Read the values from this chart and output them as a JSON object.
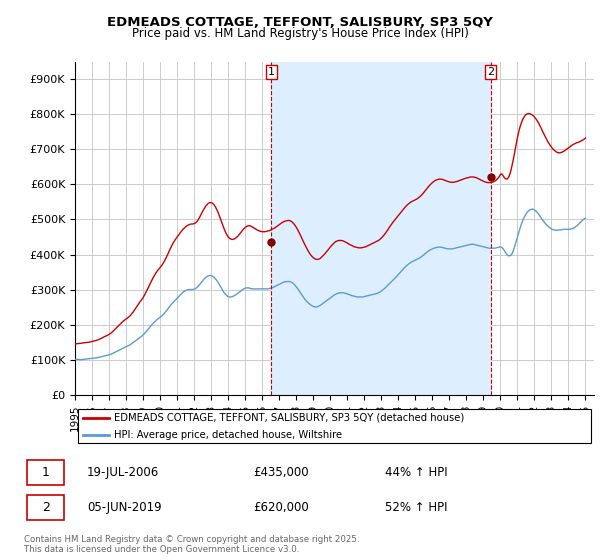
{
  "title": "EDMEADS COTTAGE, TEFFONT, SALISBURY, SP3 5QY",
  "subtitle": "Price paid vs. HM Land Registry's House Price Index (HPI)",
  "legend_property": "EDMEADS COTTAGE, TEFFONT, SALISBURY, SP3 5QY (detached house)",
  "legend_hpi": "HPI: Average price, detached house, Wiltshire",
  "sale1_date": "19-JUL-2006",
  "sale1_price": 435000,
  "sale1_label": "44% ↑ HPI",
  "sale2_date": "05-JUN-2019",
  "sale2_price": 620000,
  "sale2_label": "52% ↑ HPI",
  "footnote": "Contains HM Land Registry data © Crown copyright and database right 2025.\nThis data is licensed under the Open Government Licence v3.0.",
  "property_color": "#cc0000",
  "hpi_color": "#5b9bd5",
  "sale_vline_color": "#cc0000",
  "background_color": "#ffffff",
  "grid_color": "#cccccc",
  "shade_color": "#ddeeff",
  "ylim": [
    0,
    950000
  ],
  "yticks": [
    0,
    100000,
    200000,
    300000,
    400000,
    500000,
    600000,
    700000,
    800000,
    900000
  ],
  "xlim_start": 1995.0,
  "xlim_end": 2025.5,
  "sale1_x": 2006.54,
  "sale2_x": 2019.43,
  "sale1_dot_y": 435000,
  "sale2_dot_y": 620000,
  "hpi_years": [
    1995.0,
    1995.083,
    1995.167,
    1995.25,
    1995.333,
    1995.417,
    1995.5,
    1995.583,
    1995.667,
    1995.75,
    1995.833,
    1995.917,
    1996.0,
    1996.083,
    1996.167,
    1996.25,
    1996.333,
    1996.417,
    1996.5,
    1996.583,
    1996.667,
    1996.75,
    1996.833,
    1996.917,
    1997.0,
    1997.083,
    1997.167,
    1997.25,
    1997.333,
    1997.417,
    1997.5,
    1997.583,
    1997.667,
    1997.75,
    1997.833,
    1997.917,
    1998.0,
    1998.083,
    1998.167,
    1998.25,
    1998.333,
    1998.417,
    1998.5,
    1998.583,
    1998.667,
    1998.75,
    1998.833,
    1998.917,
    1999.0,
    1999.083,
    1999.167,
    1999.25,
    1999.333,
    1999.417,
    1999.5,
    1999.583,
    1999.667,
    1999.75,
    1999.833,
    1999.917,
    2000.0,
    2000.083,
    2000.167,
    2000.25,
    2000.333,
    2000.417,
    2000.5,
    2000.583,
    2000.667,
    2000.75,
    2000.833,
    2000.917,
    2001.0,
    2001.083,
    2001.167,
    2001.25,
    2001.333,
    2001.417,
    2001.5,
    2001.583,
    2001.667,
    2001.75,
    2001.833,
    2001.917,
    2002.0,
    2002.083,
    2002.167,
    2002.25,
    2002.333,
    2002.417,
    2002.5,
    2002.583,
    2002.667,
    2002.75,
    2002.833,
    2002.917,
    2003.0,
    2003.083,
    2003.167,
    2003.25,
    2003.333,
    2003.417,
    2003.5,
    2003.583,
    2003.667,
    2003.75,
    2003.833,
    2003.917,
    2004.0,
    2004.083,
    2004.167,
    2004.25,
    2004.333,
    2004.417,
    2004.5,
    2004.583,
    2004.667,
    2004.75,
    2004.833,
    2004.917,
    2005.0,
    2005.083,
    2005.167,
    2005.25,
    2005.333,
    2005.417,
    2005.5,
    2005.583,
    2005.667,
    2005.75,
    2005.833,
    2005.917,
    2006.0,
    2006.083,
    2006.167,
    2006.25,
    2006.333,
    2006.417,
    2006.5,
    2006.583,
    2006.667,
    2006.75,
    2006.833,
    2006.917,
    2007.0,
    2007.083,
    2007.167,
    2007.25,
    2007.333,
    2007.417,
    2007.5,
    2007.583,
    2007.667,
    2007.75,
    2007.833,
    2007.917,
    2008.0,
    2008.083,
    2008.167,
    2008.25,
    2008.333,
    2008.417,
    2008.5,
    2008.583,
    2008.667,
    2008.75,
    2008.833,
    2008.917,
    2009.0,
    2009.083,
    2009.167,
    2009.25,
    2009.333,
    2009.417,
    2009.5,
    2009.583,
    2009.667,
    2009.75,
    2009.833,
    2009.917,
    2010.0,
    2010.083,
    2010.167,
    2010.25,
    2010.333,
    2010.417,
    2010.5,
    2010.583,
    2010.667,
    2010.75,
    2010.833,
    2010.917,
    2011.0,
    2011.083,
    2011.167,
    2011.25,
    2011.333,
    2011.417,
    2011.5,
    2011.583,
    2011.667,
    2011.75,
    2011.833,
    2011.917,
    2012.0,
    2012.083,
    2012.167,
    2012.25,
    2012.333,
    2012.417,
    2012.5,
    2012.583,
    2012.667,
    2012.75,
    2012.833,
    2012.917,
    2013.0,
    2013.083,
    2013.167,
    2013.25,
    2013.333,
    2013.417,
    2013.5,
    2013.583,
    2013.667,
    2013.75,
    2013.833,
    2013.917,
    2014.0,
    2014.083,
    2014.167,
    2014.25,
    2014.333,
    2014.417,
    2014.5,
    2014.583,
    2014.667,
    2014.75,
    2014.833,
    2014.917,
    2015.0,
    2015.083,
    2015.167,
    2015.25,
    2015.333,
    2015.417,
    2015.5,
    2015.583,
    2015.667,
    2015.75,
    2015.833,
    2015.917,
    2016.0,
    2016.083,
    2016.167,
    2016.25,
    2016.333,
    2016.417,
    2016.5,
    2016.583,
    2016.667,
    2016.75,
    2016.833,
    2016.917,
    2017.0,
    2017.083,
    2017.167,
    2017.25,
    2017.333,
    2017.417,
    2017.5,
    2017.583,
    2017.667,
    2017.75,
    2017.833,
    2017.917,
    2018.0,
    2018.083,
    2018.167,
    2018.25,
    2018.333,
    2018.417,
    2018.5,
    2018.583,
    2018.667,
    2018.75,
    2018.833,
    2018.917,
    2019.0,
    2019.083,
    2019.167,
    2019.25,
    2019.333,
    2019.417,
    2019.5,
    2019.583,
    2019.667,
    2019.75,
    2019.833,
    2019.917,
    2020.0,
    2020.083,
    2020.167,
    2020.25,
    2020.333,
    2020.417,
    2020.5,
    2020.583,
    2020.667,
    2020.75,
    2020.833,
    2020.917,
    2021.0,
    2021.083,
    2021.167,
    2021.25,
    2021.333,
    2021.417,
    2021.5,
    2021.583,
    2021.667,
    2021.75,
    2021.833,
    2021.917,
    2022.0,
    2022.083,
    2022.167,
    2022.25,
    2022.333,
    2022.417,
    2022.5,
    2022.583,
    2022.667,
    2022.75,
    2022.833,
    2022.917,
    2023.0,
    2023.083,
    2023.167,
    2023.25,
    2023.333,
    2023.417,
    2023.5,
    2023.583,
    2023.667,
    2023.75,
    2023.833,
    2023.917,
    2024.0,
    2024.083,
    2024.167,
    2024.25,
    2024.333,
    2024.417,
    2024.5,
    2024.583,
    2024.667,
    2024.75,
    2024.833,
    2024.917,
    2025.0
  ],
  "hpi_values": [
    101000,
    101500,
    101000,
    100500,
    100000,
    100500,
    101000,
    101500,
    102000,
    102500,
    103000,
    103500,
    104000,
    104500,
    105000,
    105500,
    106000,
    107000,
    108000,
    109000,
    110000,
    111000,
    112000,
    113000,
    114000,
    115000,
    117000,
    119000,
    121000,
    123000,
    125000,
    127000,
    129000,
    131000,
    133000,
    135000,
    137000,
    139000,
    141000,
    143000,
    146000,
    149000,
    152000,
    155000,
    158000,
    161000,
    164000,
    167000,
    171000,
    175000,
    179000,
    184000,
    189000,
    194000,
    199000,
    203000,
    207000,
    211000,
    215000,
    218000,
    221000,
    224000,
    228000,
    232000,
    237000,
    242000,
    248000,
    253000,
    258000,
    263000,
    267000,
    271000,
    275000,
    279000,
    284000,
    288000,
    292000,
    295000,
    297000,
    299000,
    300000,
    300000,
    300000,
    300000,
    301000,
    303000,
    306000,
    310000,
    315000,
    320000,
    325000,
    330000,
    334000,
    337000,
    339000,
    340000,
    340000,
    338000,
    335000,
    331000,
    326000,
    320000,
    313000,
    306000,
    299000,
    292000,
    287000,
    283000,
    280000,
    279000,
    279000,
    280000,
    282000,
    284000,
    287000,
    290000,
    293000,
    296000,
    299000,
    302000,
    304000,
    305000,
    305000,
    304000,
    303000,
    302000,
    302000,
    302000,
    302000,
    302000,
    302000,
    302000,
    302000,
    302000,
    302000,
    302000,
    302000,
    303000,
    304000,
    305000,
    307000,
    309000,
    311000,
    313000,
    315000,
    317000,
    319000,
    321000,
    322000,
    323000,
    323000,
    323000,
    322000,
    320000,
    317000,
    313000,
    308000,
    303000,
    297000,
    291000,
    285000,
    279000,
    273000,
    268000,
    264000,
    260000,
    257000,
    254000,
    252000,
    251000,
    250000,
    251000,
    253000,
    255000,
    258000,
    261000,
    264000,
    267000,
    270000,
    273000,
    276000,
    279000,
    282000,
    285000,
    287000,
    289000,
    290000,
    291000,
    291000,
    291000,
    290000,
    289000,
    288000,
    286000,
    285000,
    283000,
    282000,
    281000,
    280000,
    279000,
    279000,
    279000,
    279000,
    279000,
    280000,
    281000,
    282000,
    283000,
    284000,
    285000,
    286000,
    287000,
    288000,
    289000,
    291000,
    293000,
    296000,
    299000,
    302000,
    306000,
    310000,
    314000,
    318000,
    322000,
    326000,
    330000,
    334000,
    338000,
    343000,
    347000,
    352000,
    356000,
    361000,
    365000,
    369000,
    372000,
    375000,
    378000,
    380000,
    382000,
    384000,
    386000,
    388000,
    390000,
    393000,
    396000,
    399000,
    403000,
    406000,
    409000,
    412000,
    414000,
    416000,
    418000,
    419000,
    420000,
    421000,
    421000,
    421000,
    420000,
    419000,
    418000,
    417000,
    416000,
    416000,
    416000,
    416000,
    417000,
    418000,
    419000,
    420000,
    421000,
    422000,
    423000,
    424000,
    425000,
    426000,
    427000,
    428000,
    429000,
    429000,
    429000,
    428000,
    427000,
    426000,
    425000,
    424000,
    423000,
    422000,
    421000,
    420000,
    419000,
    418000,
    418000,
    418000,
    418000,
    418000,
    419000,
    420000,
    421000,
    422000,
    420000,
    416000,
    410000,
    403000,
    398000,
    396000,
    397000,
    401000,
    410000,
    422000,
    436000,
    450000,
    464000,
    477000,
    489000,
    499000,
    508000,
    515000,
    521000,
    525000,
    528000,
    529000,
    529000,
    527000,
    524000,
    520000,
    515000,
    509000,
    503000,
    497000,
    492000,
    487000,
    483000,
    479000,
    476000,
    473000,
    471000,
    470000,
    469000,
    469000,
    470000,
    470000,
    471000,
    471000,
    472000,
    472000,
    472000,
    472000,
    472000,
    473000,
    474000,
    476000,
    479000,
    482000,
    486000,
    490000,
    494000,
    498000,
    501000,
    504000
  ],
  "property_years": [
    1995.0,
    1995.083,
    1995.167,
    1995.25,
    1995.333,
    1995.417,
    1995.5,
    1995.583,
    1995.667,
    1995.75,
    1995.833,
    1995.917,
    1996.0,
    1996.083,
    1996.167,
    1996.25,
    1996.333,
    1996.417,
    1996.5,
    1996.583,
    1996.667,
    1996.75,
    1996.833,
    1996.917,
    1997.0,
    1997.083,
    1997.167,
    1997.25,
    1997.333,
    1997.417,
    1997.5,
    1997.583,
    1997.667,
    1997.75,
    1997.833,
    1997.917,
    1998.0,
    1998.083,
    1998.167,
    1998.25,
    1998.333,
    1998.417,
    1998.5,
    1998.583,
    1998.667,
    1998.75,
    1998.833,
    1998.917,
    1999.0,
    1999.083,
    1999.167,
    1999.25,
    1999.333,
    1999.417,
    1999.5,
    1999.583,
    1999.667,
    1999.75,
    1999.833,
    1999.917,
    2000.0,
    2000.083,
    2000.167,
    2000.25,
    2000.333,
    2000.417,
    2000.5,
    2000.583,
    2000.667,
    2000.75,
    2000.833,
    2000.917,
    2001.0,
    2001.083,
    2001.167,
    2001.25,
    2001.333,
    2001.417,
    2001.5,
    2001.583,
    2001.667,
    2001.75,
    2001.833,
    2001.917,
    2002.0,
    2002.083,
    2002.167,
    2002.25,
    2002.333,
    2002.417,
    2002.5,
    2002.583,
    2002.667,
    2002.75,
    2002.833,
    2002.917,
    2003.0,
    2003.083,
    2003.167,
    2003.25,
    2003.333,
    2003.417,
    2003.5,
    2003.583,
    2003.667,
    2003.75,
    2003.833,
    2003.917,
    2004.0,
    2004.083,
    2004.167,
    2004.25,
    2004.333,
    2004.417,
    2004.5,
    2004.583,
    2004.667,
    2004.75,
    2004.833,
    2004.917,
    2005.0,
    2005.083,
    2005.167,
    2005.25,
    2005.333,
    2005.417,
    2005.5,
    2005.583,
    2005.667,
    2005.75,
    2005.833,
    2005.917,
    2006.0,
    2006.083,
    2006.167,
    2006.25,
    2006.333,
    2006.417,
    2006.5,
    2006.583,
    2006.667,
    2006.75,
    2006.833,
    2006.917,
    2007.0,
    2007.083,
    2007.167,
    2007.25,
    2007.333,
    2007.417,
    2007.5,
    2007.583,
    2007.667,
    2007.75,
    2007.833,
    2007.917,
    2008.0,
    2008.083,
    2008.167,
    2008.25,
    2008.333,
    2008.417,
    2008.5,
    2008.583,
    2008.667,
    2008.75,
    2008.833,
    2008.917,
    2009.0,
    2009.083,
    2009.167,
    2009.25,
    2009.333,
    2009.417,
    2009.5,
    2009.583,
    2009.667,
    2009.75,
    2009.833,
    2009.917,
    2010.0,
    2010.083,
    2010.167,
    2010.25,
    2010.333,
    2010.417,
    2010.5,
    2010.583,
    2010.667,
    2010.75,
    2010.833,
    2010.917,
    2011.0,
    2011.083,
    2011.167,
    2011.25,
    2011.333,
    2011.417,
    2011.5,
    2011.583,
    2011.667,
    2011.75,
    2011.833,
    2011.917,
    2012.0,
    2012.083,
    2012.167,
    2012.25,
    2012.333,
    2012.417,
    2012.5,
    2012.583,
    2012.667,
    2012.75,
    2012.833,
    2012.917,
    2013.0,
    2013.083,
    2013.167,
    2013.25,
    2013.333,
    2013.417,
    2013.5,
    2013.583,
    2013.667,
    2013.75,
    2013.833,
    2013.917,
    2014.0,
    2014.083,
    2014.167,
    2014.25,
    2014.333,
    2014.417,
    2014.5,
    2014.583,
    2014.667,
    2014.75,
    2014.833,
    2014.917,
    2015.0,
    2015.083,
    2015.167,
    2015.25,
    2015.333,
    2015.417,
    2015.5,
    2015.583,
    2015.667,
    2015.75,
    2015.833,
    2015.917,
    2016.0,
    2016.083,
    2016.167,
    2016.25,
    2016.333,
    2016.417,
    2016.5,
    2016.583,
    2016.667,
    2016.75,
    2016.833,
    2016.917,
    2017.0,
    2017.083,
    2017.167,
    2017.25,
    2017.333,
    2017.417,
    2017.5,
    2017.583,
    2017.667,
    2017.75,
    2017.833,
    2017.917,
    2018.0,
    2018.083,
    2018.167,
    2018.25,
    2018.333,
    2018.417,
    2018.5,
    2018.583,
    2018.667,
    2018.75,
    2018.833,
    2018.917,
    2019.0,
    2019.083,
    2019.167,
    2019.25,
    2019.333,
    2019.417,
    2019.5,
    2019.583,
    2019.667,
    2019.75,
    2019.833,
    2019.917,
    2020.0,
    2020.083,
    2020.167,
    2020.25,
    2020.333,
    2020.417,
    2020.5,
    2020.583,
    2020.667,
    2020.75,
    2020.833,
    2020.917,
    2021.0,
    2021.083,
    2021.167,
    2021.25,
    2021.333,
    2021.417,
    2021.5,
    2021.583,
    2021.667,
    2021.75,
    2021.833,
    2021.917,
    2022.0,
    2022.083,
    2022.167,
    2022.25,
    2022.333,
    2022.417,
    2022.5,
    2022.583,
    2022.667,
    2022.75,
    2022.833,
    2022.917,
    2023.0,
    2023.083,
    2023.167,
    2023.25,
    2023.333,
    2023.417,
    2023.5,
    2023.583,
    2023.667,
    2023.75,
    2023.833,
    2023.917,
    2024.0,
    2024.083,
    2024.167,
    2024.25,
    2024.333,
    2024.417,
    2024.5,
    2024.583,
    2024.667,
    2024.75,
    2024.833,
    2024.917,
    2025.0
  ],
  "property_values": [
    145000,
    145500,
    146000,
    146500,
    147000,
    147500,
    148000,
    148500,
    149000,
    149500,
    150000,
    151000,
    152000,
    153000,
    154000,
    155000,
    156500,
    158000,
    160000,
    162000,
    164000,
    166000,
    168000,
    170000,
    172000,
    175000,
    178000,
    182000,
    186000,
    190000,
    194000,
    198000,
    202000,
    206000,
    210000,
    213000,
    216000,
    219000,
    222000,
    226000,
    231000,
    236000,
    242000,
    248000,
    254000,
    260000,
    266000,
    271000,
    277000,
    284000,
    292000,
    300000,
    308000,
    317000,
    325000,
    333000,
    340000,
    347000,
    353000,
    358000,
    363000,
    368000,
    374000,
    381000,
    389000,
    397000,
    406000,
    415000,
    423000,
    431000,
    438000,
    444000,
    450000,
    455000,
    461000,
    466000,
    471000,
    475000,
    479000,
    482000,
    484000,
    486000,
    487000,
    487000,
    488000,
    490000,
    494000,
    500000,
    507000,
    515000,
    523000,
    530000,
    537000,
    542000,
    546000,
    548000,
    548000,
    546000,
    542000,
    536000,
    528000,
    519000,
    508000,
    497000,
    486000,
    475000,
    465000,
    457000,
    450000,
    446000,
    444000,
    443000,
    444000,
    446000,
    449000,
    453000,
    458000,
    463000,
    468000,
    473000,
    477000,
    480000,
    482000,
    482000,
    481000,
    479000,
    476000,
    474000,
    471000,
    469000,
    467000,
    466000,
    465000,
    465000,
    465000,
    466000,
    467000,
    468000,
    470000,
    472000,
    474000,
    476000,
    479000,
    482000,
    485000,
    488000,
    491000,
    493000,
    495000,
    496000,
    497000,
    497000,
    496000,
    493000,
    489000,
    484000,
    478000,
    471000,
    463000,
    455000,
    446000,
    437000,
    429000,
    421000,
    413000,
    406000,
    400000,
    395000,
    391000,
    388000,
    386000,
    386000,
    387000,
    389000,
    393000,
    397000,
    401000,
    406000,
    411000,
    416000,
    421000,
    426000,
    430000,
    434000,
    437000,
    439000,
    440000,
    440000,
    440000,
    439000,
    437000,
    435000,
    433000,
    430000,
    428000,
    426000,
    424000,
    422000,
    421000,
    420000,
    419000,
    419000,
    419000,
    420000,
    421000,
    422000,
    424000,
    426000,
    428000,
    430000,
    432000,
    434000,
    436000,
    438000,
    440000,
    443000,
    447000,
    451000,
    456000,
    461000,
    467000,
    473000,
    479000,
    485000,
    491000,
    496000,
    501000,
    506000,
    511000,
    516000,
    521000,
    526000,
    531000,
    536000,
    540000,
    544000,
    547000,
    550000,
    552000,
    554000,
    556000,
    558000,
    561000,
    564000,
    568000,
    572000,
    577000,
    582000,
    587000,
    592000,
    597000,
    601000,
    605000,
    608000,
    611000,
    613000,
    614000,
    615000,
    615000,
    614000,
    613000,
    611000,
    610000,
    608000,
    607000,
    606000,
    606000,
    606000,
    607000,
    608000,
    609000,
    611000,
    612000,
    614000,
    615000,
    617000,
    618000,
    619000,
    620000,
    621000,
    621000,
    621000,
    620000,
    619000,
    617000,
    615000,
    613000,
    611000,
    609000,
    607000,
    606000,
    605000,
    605000,
    605000,
    606000,
    607000,
    609000,
    612000,
    616000,
    621000,
    628000,
    630000,
    624000,
    618000,
    615000,
    616000,
    622000,
    633000,
    650000,
    669000,
    690000,
    712000,
    733000,
    751000,
    766000,
    778000,
    787000,
    794000,
    799000,
    801000,
    802000,
    801000,
    799000,
    796000,
    792000,
    787000,
    781000,
    774000,
    766000,
    758000,
    749000,
    741000,
    733000,
    725000,
    718000,
    712000,
    706000,
    701000,
    697000,
    694000,
    691000,
    690000,
    690000,
    691000,
    693000,
    695000,
    698000,
    701000,
    704000,
    707000,
    710000,
    713000,
    715000,
    717000,
    719000,
    720000,
    722000,
    724000,
    726000,
    729000,
    732000
  ]
}
